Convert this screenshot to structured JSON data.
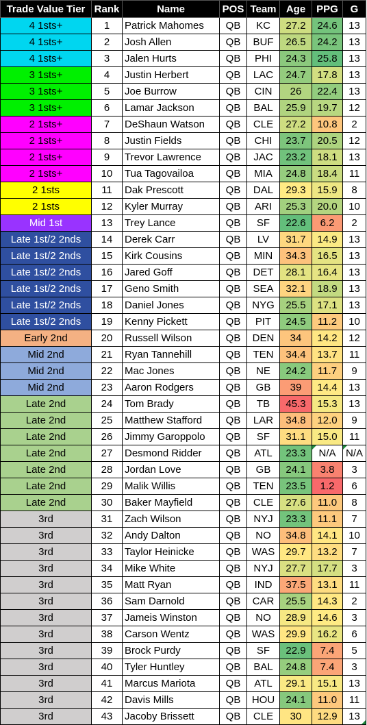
{
  "headers": [
    "Trade Value Tier",
    "Rank",
    "Name",
    "POS",
    "Team",
    "Age",
    "PPG",
    "G"
  ],
  "tier_colors": {
    "4 1sts+": "#00d6f0",
    "3 1sts+": "#00f000",
    "2 1sts+": "#ff00ff",
    "2 1sts": "#ffff00",
    "Mid 1st": "#9933ff",
    "Late 1st/2 2nds": "#2f4fa0",
    "Early 2nd": "#f4b183",
    "Mid 2nd": "#8eaadb",
    "Late 2nd": "#a9d18e",
    "3rd": "#d0cece"
  },
  "rows": [
    {
      "tier": "4 1sts+",
      "rank": "1",
      "name": "Patrick Mahomes",
      "pos": "QB",
      "team": "KC",
      "age": "27.2",
      "ppg": "24.6",
      "g": "13"
    },
    {
      "tier": "4 1sts+",
      "rank": "2",
      "name": "Josh Allen",
      "pos": "QB",
      "team": "BUF",
      "age": "26.5",
      "ppg": "24.2",
      "g": "13"
    },
    {
      "tier": "4 1sts+",
      "rank": "3",
      "name": "Jalen Hurts",
      "pos": "QB",
      "team": "PHI",
      "age": "24.3",
      "ppg": "25.8",
      "g": "13"
    },
    {
      "tier": "3 1sts+",
      "rank": "4",
      "name": "Justin Herbert",
      "pos": "QB",
      "team": "LAC",
      "age": "24.7",
      "ppg": "17.8",
      "g": "13"
    },
    {
      "tier": "3 1sts+",
      "rank": "5",
      "name": "Joe Burrow",
      "pos": "QB",
      "team": "CIN",
      "age": "26",
      "ppg": "22.4",
      "g": "13"
    },
    {
      "tier": "3 1sts+",
      "rank": "6",
      "name": "Lamar Jackson",
      "pos": "QB",
      "team": "BAL",
      "age": "25.9",
      "ppg": "19.7",
      "g": "12"
    },
    {
      "tier": "2 1sts+",
      "rank": "7",
      "name": "DeShaun Watson",
      "pos": "QB",
      "team": "CLE",
      "age": "27.2",
      "ppg": "10.8",
      "g": "2"
    },
    {
      "tier": "2 1sts+",
      "rank": "8",
      "name": "Justin Fields",
      "pos": "QB",
      "team": "CHI",
      "age": "23.7",
      "ppg": "20.5",
      "g": "12"
    },
    {
      "tier": "2 1sts+",
      "rank": "9",
      "name": "Trevor Lawrence",
      "pos": "QB",
      "team": "JAC",
      "age": "23.2",
      "ppg": "18.1",
      "g": "13"
    },
    {
      "tier": "2 1sts+",
      "rank": "10",
      "name": "Tua Tagovailoa",
      "pos": "QB",
      "team": "MIA",
      "age": "24.8",
      "ppg": "18.4",
      "g": "11"
    },
    {
      "tier": "2 1sts",
      "rank": "11",
      "name": "Dak Prescott",
      "pos": "QB",
      "team": "DAL",
      "age": "29.3",
      "ppg": "15.9",
      "g": "8"
    },
    {
      "tier": "2 1sts",
      "rank": "12",
      "name": "Kyler Murray",
      "pos": "QB",
      "team": "ARI",
      "age": "25.3",
      "ppg": "20.0",
      "g": "10"
    },
    {
      "tier": "Mid 1st",
      "rank": "13",
      "name": "Trey Lance",
      "pos": "QB",
      "team": "SF",
      "age": "22.6",
      "ppg": "6.2",
      "g": "2"
    },
    {
      "tier": "Late 1st/2 2nds",
      "rank": "14",
      "name": "Derek Carr",
      "pos": "QB",
      "team": "LV",
      "age": "31.7",
      "ppg": "14.9",
      "g": "13"
    },
    {
      "tier": "Late 1st/2 2nds",
      "rank": "15",
      "name": "Kirk Cousins",
      "pos": "QB",
      "team": "MIN",
      "age": "34.3",
      "ppg": "16.5",
      "g": "13"
    },
    {
      "tier": "Late 1st/2 2nds",
      "rank": "16",
      "name": "Jared Goff",
      "pos": "QB",
      "team": "DET",
      "age": "28.1",
      "ppg": "16.4",
      "g": "13"
    },
    {
      "tier": "Late 1st/2 2nds",
      "rank": "17",
      "name": "Geno Smith",
      "pos": "QB",
      "team": "SEA",
      "age": "32.1",
      "ppg": "18.9",
      "g": "13"
    },
    {
      "tier": "Late 1st/2 2nds",
      "rank": "18",
      "name": "Daniel Jones",
      "pos": "QB",
      "team": "NYG",
      "age": "25.5",
      "ppg": "17.1",
      "g": "13"
    },
    {
      "tier": "Late 1st/2 2nds",
      "rank": "19",
      "name": "Kenny Pickett",
      "pos": "QB",
      "team": "PIT",
      "age": "24.5",
      "ppg": "11.2",
      "g": "10"
    },
    {
      "tier": "Early 2nd",
      "rank": "20",
      "name": "Russell Wilson",
      "pos": "QB",
      "team": "DEN",
      "age": "34",
      "ppg": "14.2",
      "g": "12"
    },
    {
      "tier": "Mid 2nd",
      "rank": "21",
      "name": "Ryan Tannehill",
      "pos": "QB",
      "team": "TEN",
      "age": "34.4",
      "ppg": "13.7",
      "g": "11"
    },
    {
      "tier": "Mid 2nd",
      "rank": "22",
      "name": "Mac Jones",
      "pos": "QB",
      "team": "NE",
      "age": "24.2",
      "ppg": "11.7",
      "g": "9"
    },
    {
      "tier": "Mid 2nd",
      "rank": "23",
      "name": "Aaron Rodgers",
      "pos": "QB",
      "team": "GB",
      "age": "39",
      "ppg": "14.4",
      "g": "13"
    },
    {
      "tier": "Late 2nd",
      "rank": "24",
      "name": "Tom Brady",
      "pos": "QB",
      "team": "TB",
      "age": "45.3",
      "ppg": "15.3",
      "g": "13"
    },
    {
      "tier": "Late 2nd",
      "rank": "25",
      "name": "Matthew Stafford",
      "pos": "QB",
      "team": "LAR",
      "age": "34.8",
      "ppg": "12.0",
      "g": "9"
    },
    {
      "tier": "Late 2nd",
      "rank": "26",
      "name": "Jimmy Garoppolo",
      "pos": "QB",
      "team": "SF",
      "age": "31.1",
      "ppg": "15.0",
      "g": "11"
    },
    {
      "tier": "Late 2nd",
      "rank": "27",
      "name": "Desmond Ridder",
      "pos": "QB",
      "team": "ATL",
      "age": "23.3",
      "ppg": "N/A",
      "g": "N/A"
    },
    {
      "tier": "Late 2nd",
      "rank": "28",
      "name": "Jordan Love",
      "pos": "QB",
      "team": "GB",
      "age": "24.1",
      "ppg": "3.8",
      "g": "3"
    },
    {
      "tier": "Late 2nd",
      "rank": "29",
      "name": "Malik Willis",
      "pos": "QB",
      "team": "TEN",
      "age": "23.5",
      "ppg": "1.2",
      "g": "6"
    },
    {
      "tier": "Late 2nd",
      "rank": "30",
      "name": "Baker Mayfield",
      "pos": "QB",
      "team": "CLE",
      "age": "27.6",
      "ppg": "11.0",
      "g": "8"
    },
    {
      "tier": "3rd",
      "rank": "31",
      "name": "Zach Wilson",
      "pos": "QB",
      "team": "NYJ",
      "age": "23.3",
      "ppg": "11.1",
      "g": "7"
    },
    {
      "tier": "3rd",
      "rank": "32",
      "name": "Andy Dalton",
      "pos": "QB",
      "team": "NO",
      "age": "34.8",
      "ppg": "14.1",
      "g": "10"
    },
    {
      "tier": "3rd",
      "rank": "33",
      "name": "Taylor Heinicke",
      "pos": "QB",
      "team": "WAS",
      "age": "29.7",
      "ppg": "13.2",
      "g": "7"
    },
    {
      "tier": "3rd",
      "rank": "34",
      "name": "Mike White",
      "pos": "QB",
      "team": "NYJ",
      "age": "27.7",
      "ppg": "17.7",
      "g": "3"
    },
    {
      "tier": "3rd",
      "rank": "35",
      "name": "Matt Ryan",
      "pos": "QB",
      "team": "IND",
      "age": "37.5",
      "ppg": "13.1",
      "g": "11"
    },
    {
      "tier": "3rd",
      "rank": "36",
      "name": "Sam Darnold",
      "pos": "QB",
      "team": "CAR",
      "age": "25.5",
      "ppg": "14.3",
      "g": "2"
    },
    {
      "tier": "3rd",
      "rank": "37",
      "name": "Jameis Winston",
      "pos": "QB",
      "team": "NO",
      "age": "28.9",
      "ppg": "14.6",
      "g": "3"
    },
    {
      "tier": "3rd",
      "rank": "38",
      "name": "Carson Wentz",
      "pos": "QB",
      "team": "WAS",
      "age": "29.9",
      "ppg": "16.2",
      "g": "6"
    },
    {
      "tier": "3rd",
      "rank": "39",
      "name": "Brock Purdy",
      "pos": "QB",
      "team": "SF",
      "age": "22.9",
      "ppg": "7.4",
      "g": "5"
    },
    {
      "tier": "3rd",
      "rank": "40",
      "name": "Tyler Huntley",
      "pos": "QB",
      "team": "BAL",
      "age": "24.8",
      "ppg": "7.4",
      "g": "3"
    },
    {
      "tier": "3rd",
      "rank": "41",
      "name": "Marcus Mariota",
      "pos": "QB",
      "team": "ATL",
      "age": "29.1",
      "ppg": "15.1",
      "g": "13"
    },
    {
      "tier": "3rd",
      "rank": "42",
      "name": "Davis Mills",
      "pos": "QB",
      "team": "HOU",
      "age": "24.1",
      "ppg": "11.0",
      "g": "11"
    },
    {
      "tier": "3rd",
      "rank": "43",
      "name": "Jacoby Brissett",
      "pos": "QB",
      "team": "CLE",
      "age": "30",
      "ppg": "12.9",
      "g": "13"
    }
  ]
}
